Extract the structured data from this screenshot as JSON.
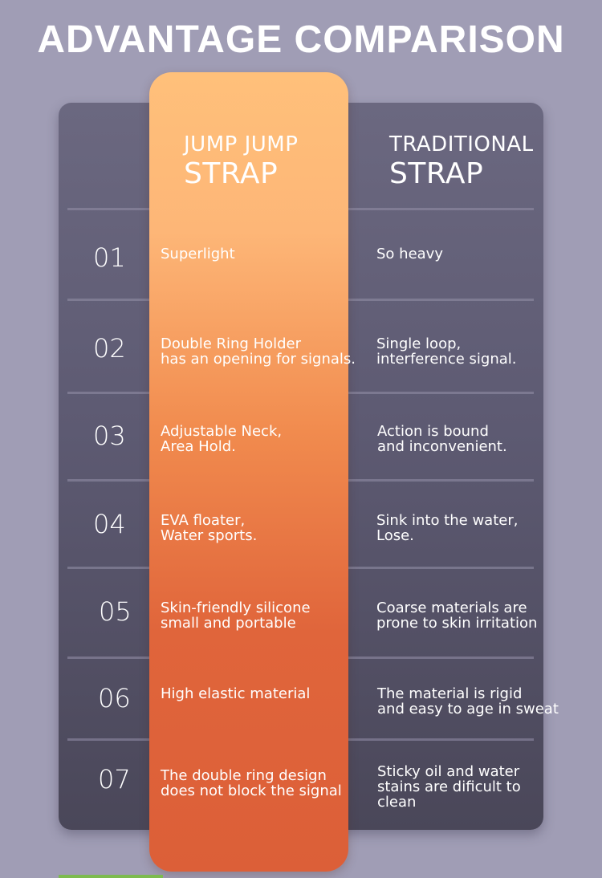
{
  "title": "ADVANTAGE COMPARISON",
  "headers": {
    "jump_line1": "JUMP JUMP",
    "jump_line2": "STRAP",
    "trad_line1": "TRADITIONAL",
    "trad_line2": "STRAP"
  },
  "rows": [
    {
      "num": "01",
      "jump": [
        "Superlight"
      ],
      "trad": [
        "So heavy"
      ]
    },
    {
      "num": "02",
      "jump": [
        "Double Ring Holder",
        "has an opening for signals."
      ],
      "trad": [
        "Single loop,",
        "interference signal."
      ]
    },
    {
      "num": "03",
      "jump": [
        "Adjustable Neck,",
        "Area Hold."
      ],
      "trad": [
        "Action is bound",
        "and inconvenient."
      ]
    },
    {
      "num": "04",
      "jump": [
        "EVA floater,",
        "Water sports."
      ],
      "trad": [
        "Sink into the water,",
        "Lose."
      ]
    },
    {
      "num": "05",
      "jump": [
        "Skin-friendly silicone",
        "small and portable"
      ],
      "trad": [
        "Coarse materials are",
        "prone to skin irritation"
      ]
    },
    {
      "num": "06",
      "jump": [
        "High elastic material"
      ],
      "trad": [
        "The material is rigid",
        "and easy to age in sweat"
      ]
    },
    {
      "num": "07",
      "jump": [
        "The double ring design",
        "does not block the signal"
      ],
      "trad": [
        "Sticky oil and water",
        "stains are dificult to",
        "clean"
      ]
    }
  ],
  "colors": {
    "background": "#a09db5",
    "panel": "#5d5a72",
    "highlight_top": "#ffc07a",
    "highlight_bottom": "#dc5f38"
  }
}
